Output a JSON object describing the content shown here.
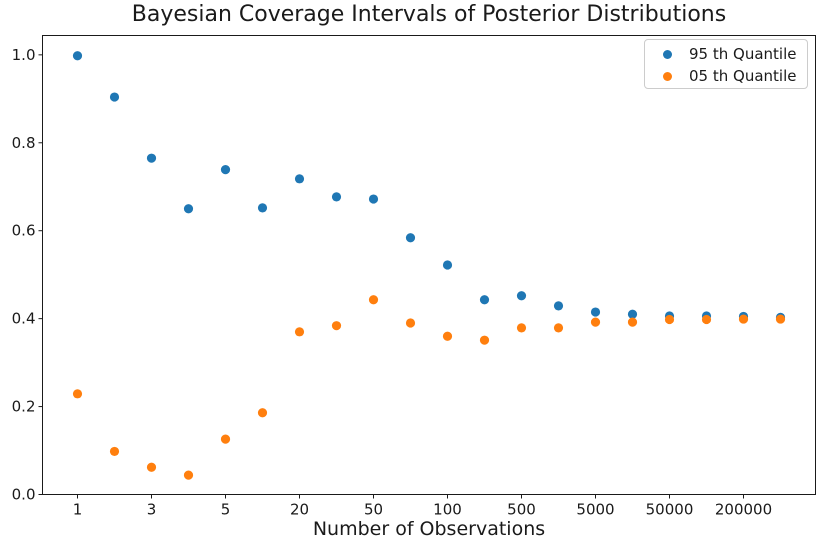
{
  "chart_data": {
    "type": "scatter",
    "title": "Bayesian Coverage Intervals of Posterior Distributions",
    "xlabel": "Number of Observations",
    "ylabel": "",
    "grid": false,
    "n_points": 20,
    "x_axis": {
      "tick_labels": [
        "1",
        "3",
        "5",
        "20",
        "50",
        "100",
        "500",
        "5000",
        "50000",
        "200000"
      ],
      "tick_indices": [
        0,
        2,
        4,
        6,
        8,
        10,
        12,
        14,
        16,
        18
      ]
    },
    "y_axis": {
      "tick_labels": [
        "0.0",
        "0.2",
        "0.4",
        "0.6",
        "0.8",
        "1.0"
      ],
      "tick_values": [
        0.0,
        0.2,
        0.4,
        0.6,
        0.8,
        1.0
      ],
      "ylim": [
        0.0,
        1.044
      ]
    },
    "legend": {
      "position": "upper-right"
    },
    "series": [
      {
        "name": "95 th Quantile",
        "color": "#1f77b4",
        "marker": "circle",
        "values": [
          0.998,
          0.904,
          0.765,
          0.65,
          0.739,
          0.652,
          0.718,
          0.677,
          0.672,
          0.584,
          0.522,
          0.443,
          0.452,
          0.429,
          0.415,
          0.41,
          0.406,
          0.406,
          0.405,
          0.403
        ]
      },
      {
        "name": "05 th Quantile",
        "color": "#ff7f0e",
        "marker": "circle",
        "values": [
          0.229,
          0.098,
          0.062,
          0.044,
          0.126,
          0.186,
          0.37,
          0.384,
          0.443,
          0.39,
          0.36,
          0.351,
          0.379,
          0.379,
          0.392,
          0.392,
          0.398,
          0.398,
          0.399,
          0.399
        ]
      }
    ]
  }
}
